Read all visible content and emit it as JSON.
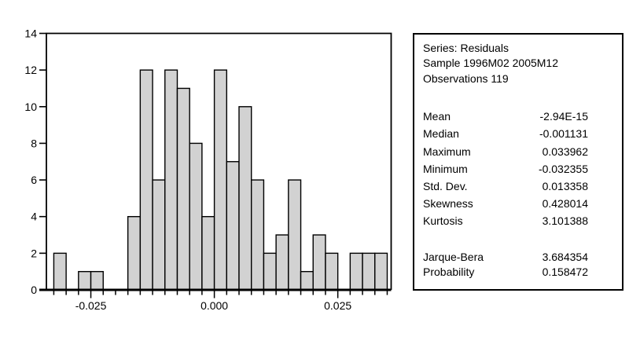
{
  "chart_data": {
    "type": "bar",
    "subtype": "histogram",
    "title": "",
    "xlabel": "",
    "ylabel": "",
    "series_name": "Residuals",
    "bin_start": -0.0325,
    "bin_width": 0.0025,
    "bin_counts": [
      2,
      0,
      1,
      1,
      0,
      0,
      4,
      12,
      6,
      12,
      11,
      8,
      4,
      12,
      7,
      10,
      6,
      2,
      3,
      6,
      1,
      3,
      2,
      0,
      2,
      2,
      2
    ],
    "total_observations": 119,
    "x_major_ticks": [
      -0.025,
      0.0,
      0.025
    ],
    "x_major_tick_labels": [
      "-0.025",
      "0.000",
      "0.025"
    ],
    "y_ticks": [
      0,
      2,
      4,
      6,
      8,
      10,
      12,
      14
    ],
    "xlim": [
      -0.034,
      0.0358
    ],
    "ylim": [
      0,
      14
    ],
    "grid": false,
    "legend": "none",
    "bar_fill": "#d2d2d2",
    "bar_stroke": "#000000",
    "axis_color": "#000000"
  },
  "stats_panel": {
    "header": {
      "series_line": "Series: Residuals",
      "sample_line": "Sample 1996M02 2005M12",
      "observations_line": "Observations 119"
    },
    "rows": [
      {
        "label": "Mean",
        "value": "-2.94E-15"
      },
      {
        "label": "Median",
        "value": "-0.001131"
      },
      {
        "label": "Maximum",
        "value": "0.033962"
      },
      {
        "label": "Minimum",
        "value": "-0.032355"
      },
      {
        "label": "Std. Dev.",
        "value": "0.013358"
      },
      {
        "label": "Skewness",
        "value": "0.428014"
      },
      {
        "label": "Kurtosis",
        "value": "3.101388"
      }
    ],
    "test_rows": [
      {
        "label": "Jarque-Bera",
        "value": "3.684354"
      },
      {
        "label": "Probability",
        "value": "0.158472"
      }
    ]
  }
}
